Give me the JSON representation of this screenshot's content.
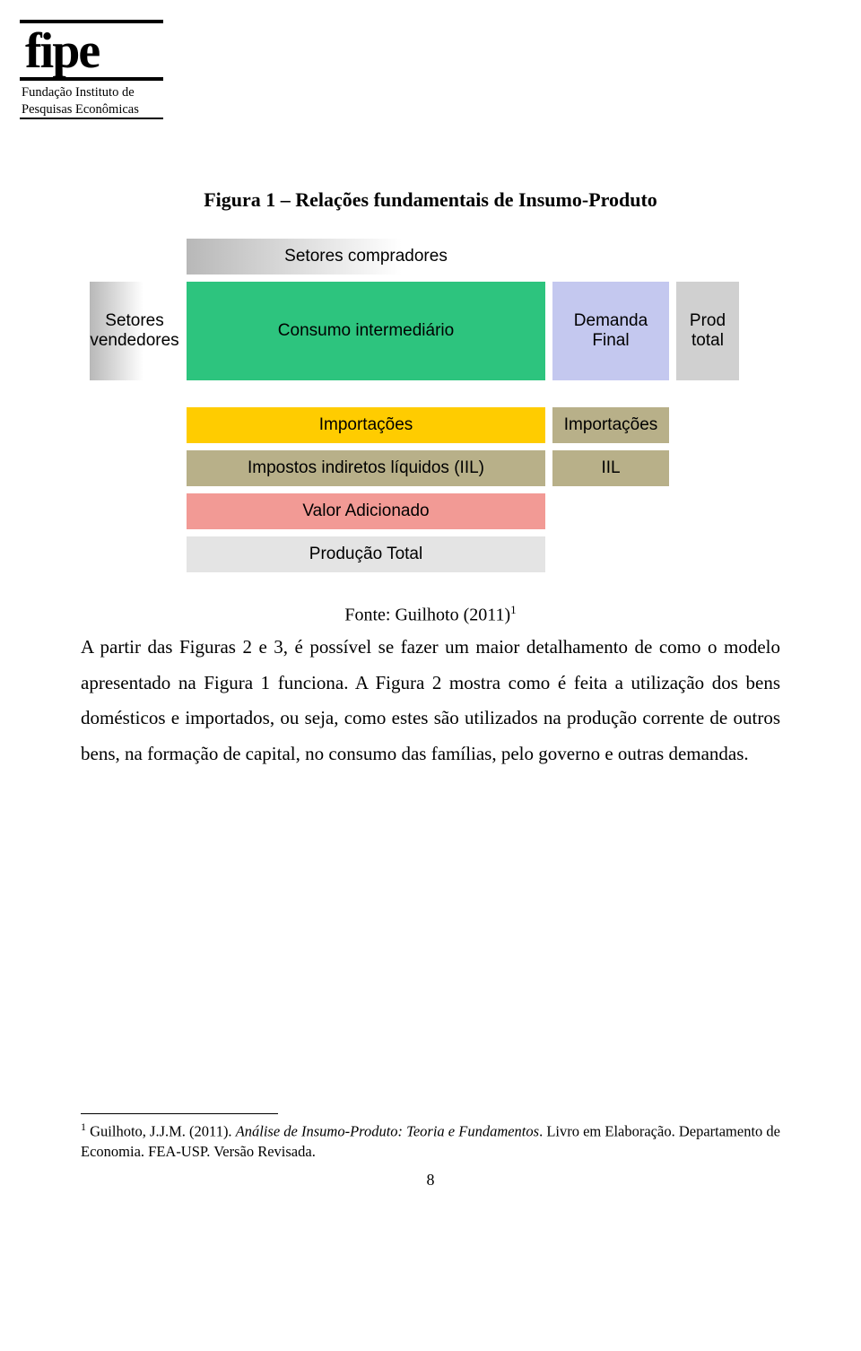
{
  "logo": {
    "brand": "fipe",
    "line1": "Fundação Instituto de",
    "line2": "Pesquisas Econômicas"
  },
  "figure": {
    "title": "Figura 1 – Relações fundamentais de Insumo-Produto",
    "colors": {
      "grad_grey_from": "#b8b8b8",
      "grad_grey_to": "#ffffff",
      "green": "#2dc47e",
      "lavender": "#c4c8ef",
      "grey": "#d0d0d0",
      "gold": "#ffcc00",
      "khaki": "#b8b089",
      "salmon": "#f29a95",
      "ltgrey": "#e4e4e4"
    },
    "labels": {
      "setores_compradores": "Setores compradores",
      "setores_vendedores": "Setores vendedores",
      "consumo_intermediario": "Consumo intermediário",
      "demanda_final": "Demanda Final",
      "prod_total": "Prod total",
      "importacoes": "Importações",
      "impostos_iil": "Impostos indiretos líquidos (IIL)",
      "iil": "IIL",
      "valor_adicionado": "Valor Adicionado",
      "producao_total": "Produção Total"
    },
    "source": "Fonte: Guilhoto (2011)",
    "source_sup": "1"
  },
  "paragraph": "A partir das Figuras 2 e 3, é possível se fazer um maior detalhamento de como o modelo apresentado na Figura 1 funciona. A Figura 2 mostra como é feita a utilização dos bens domésticos e importados, ou seja, como estes são utilizados na produção corrente de outros bens, na formação de capital, no consumo das famílias, pelo governo e outras demandas.",
  "footnote": {
    "num": "1",
    "author": "Guilhoto, J.J.M. (2011). ",
    "title_ital": "Análise de Insumo-Produto: Teoria e Fundamentos",
    "rest": ". Livro em Elaboração. Departamento de Economia. FEA-USP. Versão Revisada."
  },
  "page_number": "8"
}
